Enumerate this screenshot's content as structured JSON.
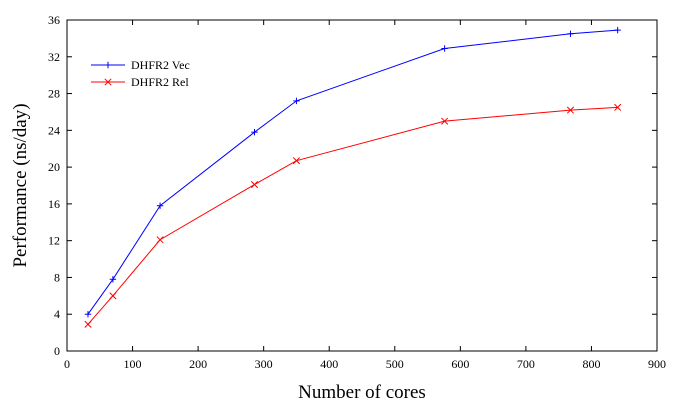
{
  "chart_data": {
    "type": "line",
    "title": "",
    "xlabel": "Number of cores",
    "ylabel": "Performance (ns/day)",
    "xlim": [
      0,
      900
    ],
    "ylim": [
      0,
      36
    ],
    "xticks": [
      0,
      100,
      200,
      300,
      400,
      500,
      600,
      700,
      800,
      900
    ],
    "yticks": [
      0,
      4,
      8,
      12,
      16,
      20,
      24,
      28,
      32,
      36
    ],
    "grid": false,
    "legend_position": "top-left",
    "series": [
      {
        "name": "DHFR2 Vec",
        "color": "#0000ff",
        "marker": "plus",
        "x": [
          32,
          70,
          142,
          286,
          350,
          576,
          768,
          840
        ],
        "y": [
          4.0,
          7.8,
          15.8,
          23.8,
          27.2,
          32.9,
          34.5,
          34.9
        ]
      },
      {
        "name": "DHFR2 Rel",
        "color": "#ff0000",
        "marker": "cross",
        "x": [
          32,
          70,
          142,
          286,
          350,
          576,
          768,
          840
        ],
        "y": [
          2.9,
          6.0,
          12.1,
          18.1,
          20.7,
          25.0,
          26.2,
          26.5
        ]
      }
    ]
  }
}
